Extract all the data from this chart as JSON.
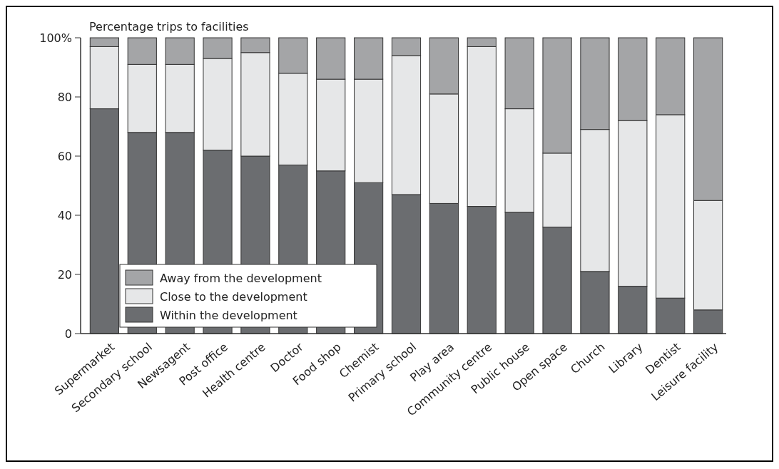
{
  "chart_data": {
    "type": "bar",
    "stacked": true,
    "title": "Percentage trips to facilities",
    "categories": [
      "Supermarket",
      "Secondary school",
      "Newsagent",
      "Post office",
      "Health centre",
      "Doctor",
      "Food shop",
      "Chemist",
      "Primary school",
      "Play area",
      "Community centre",
      "Public house",
      "Open space",
      "Church",
      "Library",
      "Dentist",
      "Leisure facility"
    ],
    "series": [
      {
        "name": "Within the development",
        "color": "#6b6d70",
        "values": [
          76,
          68,
          68,
          62,
          60,
          57,
          55,
          51,
          47,
          44,
          43,
          41,
          36,
          21,
          16,
          12,
          8
        ]
      },
      {
        "name": "Close to the development",
        "color": "#e6e7e8",
        "values": [
          21,
          23,
          23,
          31,
          35,
          31,
          31,
          35,
          47,
          37,
          54,
          35,
          25,
          48,
          56,
          62,
          37
        ]
      },
      {
        "name": "Away from the development",
        "color": "#a4a5a7",
        "values": [
          3,
          9,
          9,
          7,
          5,
          12,
          14,
          14,
          6,
          19,
          3,
          24,
          39,
          31,
          28,
          26,
          55
        ]
      }
    ],
    "ylim": [
      0,
      100
    ],
    "yticks": [
      0,
      20,
      40,
      60,
      80,
      {
        "value": 100,
        "label": "100%"
      }
    ],
    "legend": "bottom left",
    "grid": false
  }
}
